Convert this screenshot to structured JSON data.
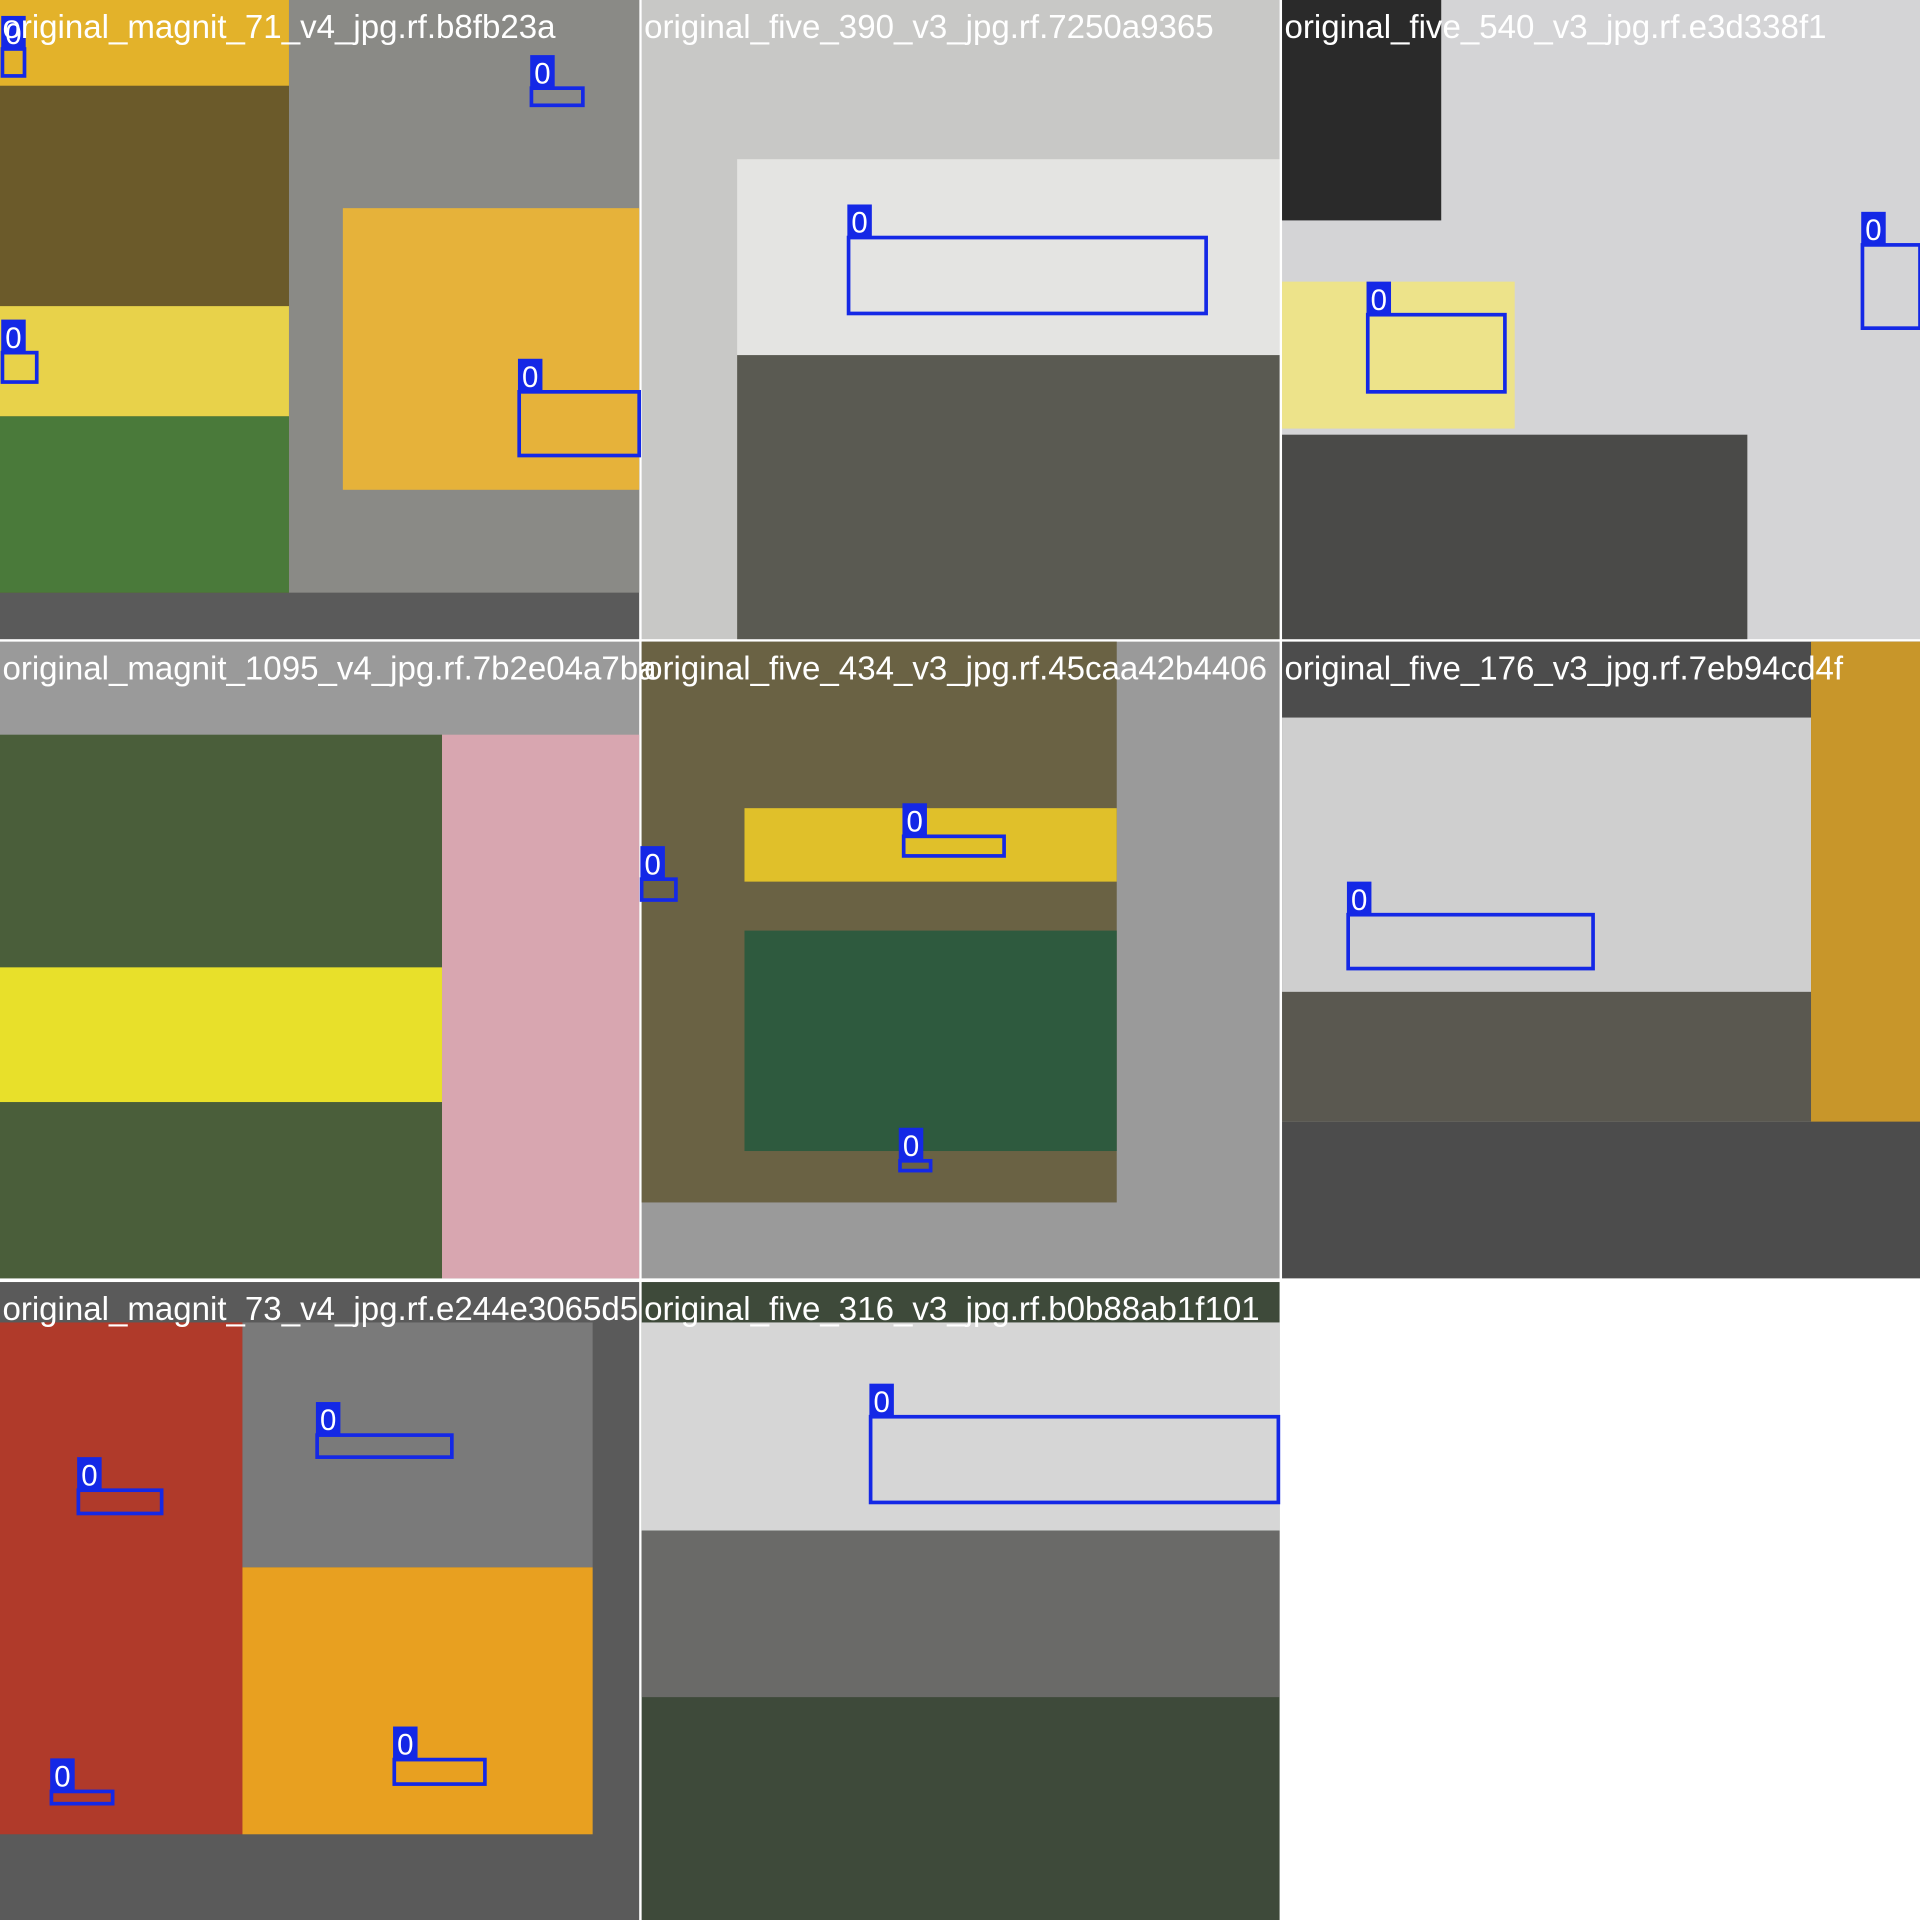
{
  "tiles": [
    {
      "filename": "original_magnit_71_v4_jpg.rf.b8fb23a",
      "detections": [
        {
          "label": "0"
        },
        {
          "label": "0"
        },
        {
          "label": "0"
        },
        {
          "label": "0"
        }
      ]
    },
    {
      "filename": "original_five_390_v3_jpg.rf.7250a9365",
      "detections": [
        {
          "label": "0"
        }
      ]
    },
    {
      "filename": "original_five_540_v3_jpg.rf.e3d338f1",
      "detections": [
        {
          "label": "0"
        },
        {
          "label": "0"
        }
      ]
    },
    {
      "filename": "original_magnit_1095_v4_jpg.rf.7b2e04a7ba",
      "detections": []
    },
    {
      "filename": "original_five_434_v3_jpg.rf.45caa42b4406",
      "detections": [
        {
          "label": "0"
        },
        {
          "label": "0"
        },
        {
          "label": "0"
        }
      ]
    },
    {
      "filename": "original_five_176_v3_jpg.rf.7eb94cd4f",
      "detections": [
        {
          "label": "0"
        }
      ]
    },
    {
      "filename": "original_magnit_73_v4_jpg.rf.e244e3065d5",
      "detections": [
        {
          "label": "0"
        },
        {
          "label": "0"
        },
        {
          "label": "0"
        },
        {
          "label": "0"
        }
      ]
    },
    {
      "filename": "original_five_316_v3_jpg.rf.b0b88ab1f101",
      "detections": [
        {
          "label": "0"
        }
      ]
    }
  ]
}
